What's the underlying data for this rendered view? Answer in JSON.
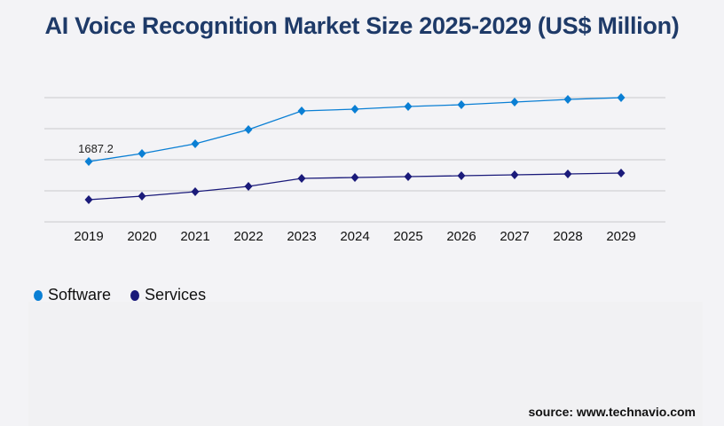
{
  "chart_data": {
    "type": "line",
    "title": "AI Voice Recognition Market Size 2025-2029 (US$ Million)",
    "x": [
      "2019",
      "2020",
      "2021",
      "2022",
      "2023",
      "2024",
      "2025",
      "2026",
      "2027",
      "2028",
      "2029"
    ],
    "series": [
      {
        "name": "Software",
        "color": "#0a7fd4",
        "values": [
          1687.2,
          1910,
          2183,
          2580,
          3101,
          3151,
          3225,
          3275,
          3349,
          3424,
          3473
        ]
      },
      {
        "name": "Services",
        "color": "#1a1a7a",
        "values": [
          620,
          720,
          844,
          992,
          1216,
          1240,
          1265,
          1290,
          1315,
          1340,
          1365
        ]
      }
    ],
    "data_labels": [
      {
        "series": "Software",
        "x": "2019",
        "text": "1687.2"
      }
    ],
    "ylim": [
      0,
      3474
    ],
    "grid": true,
    "legend_position": "bottom-left",
    "source": "source: www.technavio.com"
  }
}
